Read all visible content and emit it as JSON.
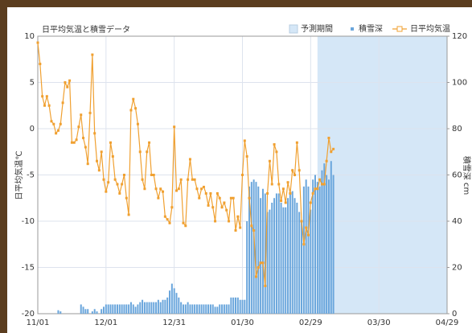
{
  "chart_data": {
    "type": "bar-line",
    "title": "日平均気温と積雪データ",
    "ylabel": "日平均気温℃",
    "y2label": "積雪深 cm",
    "forecast": {
      "label": "予測期間",
      "range": [
        "03/03",
        "04/29"
      ],
      "color": "#d5e7f7"
    },
    "x": [
      "11/01",
      "11/02",
      "11/03",
      "11/04",
      "11/05",
      "11/06",
      "11/07",
      "11/08",
      "11/09",
      "11/10",
      "11/11",
      "11/12",
      "11/13",
      "11/14",
      "11/15",
      "11/16",
      "11/17",
      "11/18",
      "11/19",
      "11/20",
      "11/21",
      "11/22",
      "11/23",
      "11/24",
      "11/25",
      "11/26",
      "11/27",
      "11/28",
      "11/29",
      "11/30",
      "12/01",
      "12/02",
      "12/03",
      "12/04",
      "12/05",
      "12/06",
      "12/07",
      "12/08",
      "12/09",
      "12/10",
      "12/11",
      "12/12",
      "12/13",
      "12/14",
      "12/15",
      "12/16",
      "12/17",
      "12/18",
      "12/19",
      "12/20",
      "12/21",
      "12/22",
      "12/23",
      "12/24",
      "12/25",
      "12/26",
      "12/27",
      "12/28",
      "12/29",
      "12/30",
      "12/31",
      "01/01",
      "01/02",
      "01/03",
      "01/04",
      "01/05",
      "01/06",
      "01/07",
      "01/08",
      "01/09",
      "01/10",
      "01/11",
      "01/12",
      "01/13",
      "01/14",
      "01/15",
      "01/16",
      "01/17",
      "01/18",
      "01/19",
      "01/20",
      "01/21",
      "01/22",
      "01/23",
      "01/24",
      "01/25",
      "01/26",
      "01/27",
      "01/28",
      "01/29",
      "01/30",
      "01/31",
      "02/01",
      "02/02",
      "02/03",
      "02/04",
      "02/05",
      "02/06",
      "02/07",
      "02/08",
      "02/09",
      "02/10",
      "02/11",
      "02/12",
      "02/13",
      "02/14",
      "02/15",
      "02/16",
      "02/17",
      "02/18",
      "02/19",
      "02/20",
      "02/21",
      "02/22",
      "02/23",
      "02/24",
      "02/25",
      "02/26",
      "02/27",
      "02/28",
      "02/29",
      "03/01",
      "03/02",
      "03/03",
      "03/04",
      "03/05",
      "03/06",
      "03/07",
      "03/08",
      "03/09",
      "03/10"
    ],
    "xlim": [
      "11/01",
      "04/29"
    ],
    "xticks": [
      "11/01",
      "12/01",
      "12/31",
      "01/30",
      "02/29",
      "03/30",
      "04/29"
    ],
    "ylim": [
      -20,
      10
    ],
    "yticks": [
      -20,
      -15,
      -10,
      -5,
      0,
      5,
      10
    ],
    "y2lim": [
      0,
      120
    ],
    "y2ticks": [
      0,
      20,
      40,
      60,
      80,
      100,
      120
    ],
    "grid": true,
    "legend": "top-right",
    "series": [
      {
        "name": "積雪深",
        "type": "bar",
        "axis": "y2",
        "color": "#6aa6dc",
        "values": [
          0,
          0,
          0,
          0,
          0,
          0,
          0,
          0,
          0,
          1.5,
          1,
          0,
          0,
          0,
          0,
          0,
          0,
          0,
          0,
          4,
          3,
          2,
          2,
          0,
          1,
          2,
          1,
          0,
          2,
          3,
          4,
          4,
          4,
          4,
          4,
          4,
          4,
          4,
          4,
          4,
          4,
          5,
          4,
          3,
          4,
          5,
          6,
          5,
          5,
          5,
          5,
          5,
          5,
          6,
          5,
          6,
          6,
          7,
          10,
          13,
          11,
          9,
          7,
          5,
          4,
          4,
          5,
          4,
          4,
          4,
          4,
          4,
          4,
          4,
          4,
          4,
          4,
          4,
          3,
          3,
          4,
          4,
          4,
          4,
          4,
          7,
          7,
          7,
          7,
          6,
          6,
          6,
          40,
          55,
          57,
          58,
          57,
          55,
          50,
          54,
          52,
          44,
          45,
          48,
          50,
          52,
          52,
          48,
          46,
          46,
          50,
          52,
          53,
          50,
          48,
          44,
          40,
          55,
          58,
          55,
          45,
          58,
          60,
          57,
          55,
          62,
          65,
          60,
          58,
          66,
          60
        ]
      },
      {
        "name": "日平均気温",
        "type": "line",
        "axis": "y",
        "color": "#f0a030",
        "values": [
          9.3,
          7,
          3.5,
          2.5,
          3.5,
          2.5,
          0.8,
          0.5,
          -0.5,
          -0.2,
          0.5,
          2.8,
          5,
          4.5,
          5.2,
          -1.5,
          -1.5,
          -1.2,
          0.2,
          1.5,
          -1,
          -2,
          -3.8,
          1.7,
          8,
          -0.5,
          -3.5,
          -4.5,
          -2.5,
          -5.5,
          -6.8,
          -5.8,
          -1.5,
          -3,
          -5.5,
          -6,
          -7,
          -6,
          -5,
          -7.5,
          -9.3,
          2,
          3.2,
          2.2,
          0.5,
          -2.5,
          -5.5,
          -6.5,
          -2.5,
          -1.5,
          -5,
          -5,
          -6.5,
          -7.5,
          -6.5,
          -6.8,
          -9.5,
          -9.8,
          -10.2,
          -8.5,
          0.2,
          -6.7,
          -6.5,
          -5.5,
          -10.2,
          -10.5,
          -5.5,
          -3.3,
          -5.5,
          -5.5,
          -6.5,
          -7.5,
          -6.5,
          -6.3,
          -7,
          -8.3,
          -7,
          -8.5,
          -10,
          -7,
          -7.5,
          -8.5,
          -8,
          -8.8,
          -10,
          -7.5,
          -7.5,
          -11,
          -9.5,
          -10.7,
          -5,
          -1.3,
          -3,
          -7.5,
          -10.5,
          -11,
          -16,
          -15,
          -14.5,
          -14.5,
          -17,
          -7,
          -3.5,
          -6,
          -1.7,
          -2.5,
          -6,
          -7.8,
          -6.5,
          -8,
          -5.8,
          -7,
          -4.5,
          -5,
          -1.5,
          -4.5,
          -10,
          -12.5,
          -10.7,
          -11.5,
          -8,
          -7,
          -6.5,
          -6.5,
          -5.5,
          -6,
          -6,
          -3.5,
          -1,
          -2.5,
          -2.2
        ]
      }
    ]
  }
}
